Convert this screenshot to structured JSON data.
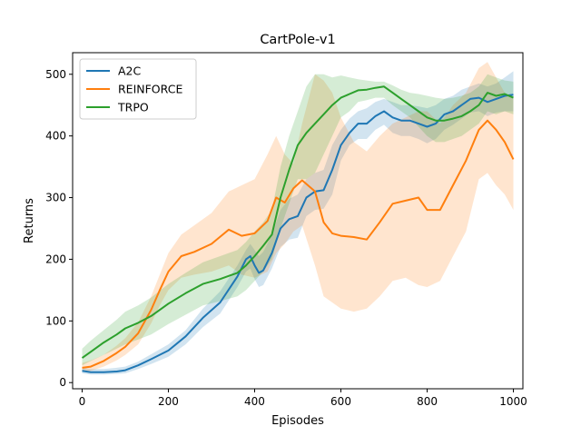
{
  "chart_data": {
    "type": "line",
    "title": "CartPole-v1",
    "xlabel": "Episodes",
    "ylabel": "Returns",
    "xlim": [
      -22,
      1022
    ],
    "ylim": [
      -10,
      535
    ],
    "xticks": [
      0,
      200,
      400,
      600,
      800,
      1000
    ],
    "yticks": [
      0,
      100,
      200,
      300,
      400,
      500
    ],
    "grid": false,
    "legend_position": "top-left",
    "series": [
      {
        "name": "A2C",
        "color": "#1f77b4",
        "x": [
          0,
          20,
          50,
          80,
          100,
          130,
          160,
          200,
          240,
          280,
          320,
          360,
          380,
          390,
          400,
          410,
          420,
          440,
          460,
          480,
          500,
          520,
          540,
          560,
          580,
          600,
          620,
          640,
          660,
          680,
          700,
          720,
          740,
          760,
          780,
          800,
          820,
          840,
          860,
          880,
          900,
          920,
          940,
          960,
          980,
          1000
        ],
        "mean": [
          19,
          17,
          17,
          18,
          20,
          28,
          38,
          52,
          75,
          105,
          130,
          172,
          200,
          205,
          190,
          178,
          182,
          210,
          250,
          265,
          270,
          300,
          310,
          312,
          345,
          385,
          405,
          420,
          420,
          432,
          440,
          430,
          425,
          425,
          420,
          415,
          420,
          435,
          440,
          450,
          460,
          462,
          455,
          460,
          465,
          467
        ],
        "upper": [
          24,
          22,
          22,
          24,
          26,
          34,
          46,
          62,
          85,
          120,
          148,
          190,
          215,
          225,
          215,
          205,
          212,
          240,
          280,
          298,
          305,
          330,
          340,
          345,
          385,
          410,
          428,
          440,
          445,
          455,
          460,
          455,
          450,
          450,
          448,
          445,
          450,
          460,
          465,
          475,
          480,
          485,
          480,
          485,
          495,
          505
        ],
        "lower": [
          15,
          13,
          13,
          14,
          15,
          22,
          30,
          42,
          62,
          90,
          112,
          155,
          180,
          185,
          168,
          155,
          158,
          185,
          220,
          232,
          235,
          270,
          280,
          282,
          305,
          360,
          385,
          395,
          395,
          410,
          418,
          405,
          400,
          400,
          395,
          388,
          395,
          410,
          418,
          428,
          438,
          440,
          432,
          438,
          440,
          440
        ]
      },
      {
        "name": "REINFORCE",
        "color": "#ff7f0e",
        "x": [
          0,
          20,
          50,
          80,
          100,
          130,
          160,
          180,
          200,
          230,
          260,
          300,
          340,
          370,
          400,
          430,
          450,
          470,
          490,
          510,
          540,
          560,
          580,
          600,
          630,
          660,
          690,
          720,
          750,
          780,
          800,
          830,
          860,
          890,
          920,
          940,
          960,
          980,
          1000
        ],
        "mean": [
          24,
          26,
          35,
          48,
          58,
          80,
          118,
          150,
          180,
          205,
          212,
          225,
          248,
          238,
          242,
          262,
          300,
          292,
          315,
          328,
          310,
          260,
          242,
          238,
          236,
          232,
          260,
          290,
          295,
          300,
          280,
          280,
          320,
          360,
          410,
          425,
          410,
          390,
          362
        ],
        "upper": [
          32,
          36,
          45,
          60,
          72,
          98,
          140,
          175,
          210,
          240,
          255,
          275,
          310,
          320,
          330,
          370,
          400,
          370,
          355,
          420,
          500,
          490,
          470,
          430,
          390,
          375,
          400,
          420,
          430,
          440,
          440,
          420,
          450,
          470,
          510,
          520,
          495,
          470,
          460
        ],
        "lower": [
          18,
          19,
          26,
          36,
          45,
          62,
          96,
          125,
          150,
          170,
          175,
          180,
          190,
          175,
          170,
          180,
          210,
          225,
          245,
          255,
          190,
          140,
          130,
          120,
          115,
          120,
          140,
          165,
          170,
          158,
          155,
          165,
          205,
          245,
          330,
          340,
          320,
          305,
          280
        ]
      },
      {
        "name": "TRPO",
        "color": "#2ca02c",
        "x": [
          0,
          20,
          50,
          80,
          100,
          130,
          160,
          200,
          240,
          280,
          320,
          360,
          380,
          400,
          420,
          440,
          460,
          480,
          500,
          520,
          540,
          560,
          580,
          600,
          620,
          640,
          660,
          680,
          700,
          720,
          740,
          760,
          780,
          800,
          820,
          840,
          860,
          880,
          900,
          920,
          940,
          960,
          980,
          1000
        ],
        "mean": [
          40,
          50,
          65,
          78,
          88,
          97,
          108,
          128,
          145,
          160,
          168,
          178,
          190,
          205,
          222,
          240,
          300,
          345,
          385,
          405,
          420,
          435,
          450,
          462,
          468,
          474,
          475,
          478,
          480,
          470,
          460,
          450,
          440,
          430,
          425,
          425,
          428,
          432,
          440,
          450,
          470,
          465,
          468,
          462
        ],
        "upper": [
          55,
          68,
          85,
          102,
          115,
          125,
          138,
          160,
          178,
          195,
          205,
          215,
          228,
          245,
          260,
          280,
          350,
          400,
          440,
          480,
          500,
          500,
          495,
          498,
          495,
          492,
          490,
          488,
          488,
          482,
          475,
          470,
          468,
          465,
          462,
          460,
          462,
          465,
          470,
          480,
          500,
          495,
          490,
          488
        ],
        "lower": [
          28,
          35,
          45,
          55,
          62,
          70,
          78,
          95,
          110,
          125,
          132,
          140,
          150,
          165,
          180,
          200,
          250,
          290,
          330,
          330,
          340,
          370,
          400,
          430,
          440,
          455,
          458,
          462,
          462,
          450,
          440,
          430,
          415,
          400,
          390,
          390,
          395,
          400,
          410,
          420,
          440,
          435,
          440,
          435
        ]
      }
    ]
  }
}
